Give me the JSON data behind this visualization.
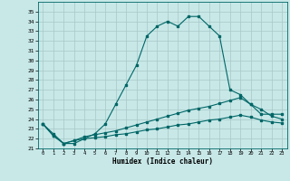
{
  "title": "",
  "xlabel": "Humidex (Indice chaleur)",
  "background_color": "#c8e8e8",
  "grid_color": "#a8c8c8",
  "line_color": "#006666",
  "xlim": [
    -0.5,
    23.5
  ],
  "ylim": [
    21,
    36
  ],
  "xticks": [
    0,
    1,
    2,
    3,
    4,
    5,
    6,
    7,
    8,
    9,
    10,
    11,
    12,
    13,
    14,
    15,
    16,
    17,
    18,
    19,
    20,
    21,
    22,
    23
  ],
  "yticks": [
    21,
    22,
    23,
    24,
    25,
    26,
    27,
    28,
    29,
    30,
    31,
    32,
    33,
    34,
    35
  ],
  "series1_x": [
    0,
    1,
    2,
    3,
    4,
    5,
    6,
    7,
    8,
    9,
    10,
    11,
    12,
    13,
    14,
    15,
    16,
    17,
    18,
    19,
    20,
    21,
    22,
    23
  ],
  "series1_y": [
    23.5,
    22.5,
    21.5,
    21.5,
    22.0,
    22.5,
    23.5,
    25.5,
    27.5,
    29.5,
    32.5,
    33.5,
    34.0,
    33.5,
    34.5,
    34.5,
    33.5,
    32.5,
    27.0,
    26.5,
    25.5,
    24.5,
    24.5,
    24.5
  ],
  "series2_x": [
    0,
    1,
    2,
    3,
    4,
    5,
    6,
    7,
    8,
    9,
    10,
    11,
    12,
    13,
    14,
    15,
    16,
    17,
    18,
    19,
    20,
    21,
    22,
    23
  ],
  "series2_y": [
    23.5,
    22.3,
    21.5,
    21.8,
    22.2,
    22.4,
    22.6,
    22.8,
    23.1,
    23.4,
    23.7,
    24.0,
    24.3,
    24.6,
    24.9,
    25.1,
    25.3,
    25.6,
    25.9,
    26.2,
    25.5,
    25.0,
    24.3,
    24.0
  ],
  "series3_x": [
    0,
    1,
    2,
    3,
    4,
    5,
    6,
    7,
    8,
    9,
    10,
    11,
    12,
    13,
    14,
    15,
    16,
    17,
    18,
    19,
    20,
    21,
    22,
    23
  ],
  "series3_y": [
    23.5,
    22.3,
    21.5,
    21.8,
    22.0,
    22.1,
    22.2,
    22.4,
    22.5,
    22.7,
    22.9,
    23.0,
    23.2,
    23.4,
    23.5,
    23.7,
    23.9,
    24.0,
    24.2,
    24.4,
    24.2,
    23.9,
    23.7,
    23.6
  ]
}
